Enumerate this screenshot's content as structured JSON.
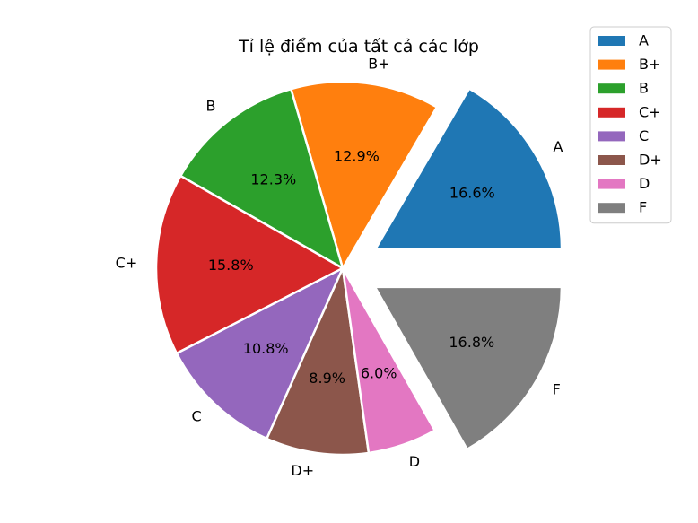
{
  "chart_data": {
    "type": "pie",
    "title": "Tỉ lệ điểm của tất cả các lớp",
    "categories": [
      "A",
      "B+",
      "B",
      "C+",
      "C",
      "D+",
      "D",
      "F"
    ],
    "values": [
      16.6,
      12.9,
      12.3,
      15.8,
      10.8,
      8.9,
      6.0,
      16.8
    ],
    "percent_labels": [
      "16.6%",
      "12.9%",
      "12.3%",
      "15.8%",
      "10.8%",
      "8.9%",
      "6.0%",
      "16.8%"
    ],
    "colors": [
      "#1f77b4",
      "#ff7f0e",
      "#2ca02c",
      "#d62728",
      "#9467bd",
      "#8c564b",
      "#e377c2",
      "#7f7f7f"
    ],
    "exploded": [
      "A",
      "F"
    ],
    "start_angle_deg": 0,
    "legend_position": "top-right"
  }
}
